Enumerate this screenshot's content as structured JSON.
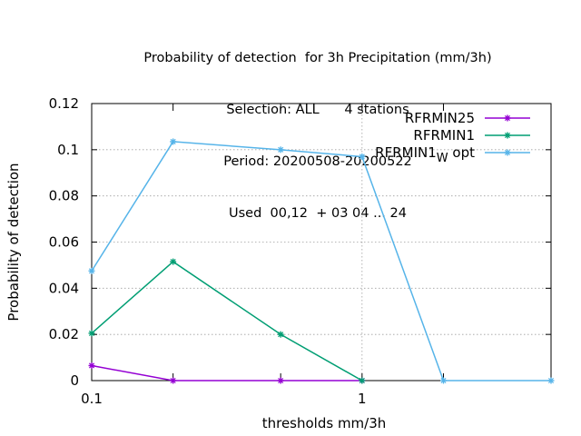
{
  "chart_data": {
    "type": "line",
    "title_lines": [
      "Probability of detection  for 3h Precipitation (mm/3h)",
      "Selection: ALL      4 stations",
      "Period: 20200508-20200522",
      "Used  00,12  + 03 04 ... 24"
    ],
    "xlabel": "thresholds mm/3h",
    "ylabel": "Probability of detection",
    "x_scale": "log",
    "xlim": [
      0.1,
      5
    ],
    "ylim": [
      0,
      0.12
    ],
    "x_ticks": [
      0.1,
      0.2,
      0.5,
      1,
      2,
      5
    ],
    "x_tick_labels": [
      "0.1",
      "1"
    ],
    "x_tick_label_values": [
      0.1,
      1
    ],
    "y_ticks": [
      0,
      0.02,
      0.04,
      0.06,
      0.08,
      0.1,
      0.12
    ],
    "y_tick_labels": [
      "0",
      "0.02",
      "0.04",
      "0.06",
      "0.08",
      "0.1",
      "0.12"
    ],
    "grid": true,
    "legend_position": "top-right",
    "x": [
      0.1,
      0.2,
      0.5,
      1,
      2,
      5
    ],
    "series": [
      {
        "name": "RFRMIN25",
        "name_main": "RFRMIN25",
        "name_sub": "",
        "name_tail": "",
        "color": "#9400d3",
        "values": [
          0.0065,
          0.0,
          0.0,
          0.0,
          null,
          null
        ]
      },
      {
        "name": "RFRMIN1",
        "name_main": "RFRMIN1",
        "name_sub": "",
        "name_tail": "",
        "color": "#009e73",
        "values": [
          0.0205,
          0.0515,
          0.02,
          0.0,
          null,
          null
        ]
      },
      {
        "name": "RFRMIN1W opt",
        "name_main": "RFRMIN1",
        "name_sub": "W",
        "name_tail": " opt",
        "color": "#56b4e9",
        "values": [
          0.0475,
          0.1035,
          0.1,
          0.097,
          0.0,
          0.0
        ]
      }
    ]
  }
}
